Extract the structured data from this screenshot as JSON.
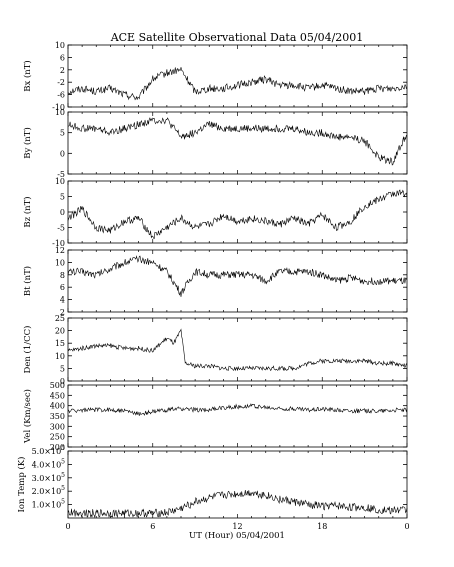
{
  "chart_data": {
    "type": "line",
    "title": "ACE Satellite Observational Data   05/04/2001",
    "xlabel": "UT (Hour)   05/04/2001",
    "x_ticks": [
      "0",
      "6",
      "12",
      "18",
      "0"
    ],
    "x_range_hours": [
      0,
      24
    ],
    "line_color": "#000000",
    "panels": [
      {
        "ylabel": "Bx (nT)",
        "ylim": [
          -10,
          10
        ],
        "ticks": [
          10,
          6,
          2,
          -2,
          -6,
          -10
        ],
        "tick_labels": [
          "10",
          "6",
          "2",
          "-2",
          "-6",
          "-10"
        ],
        "series": {
          "x": [
            0,
            1,
            2,
            3,
            4,
            5,
            6,
            7,
            8,
            9,
            10,
            11,
            12,
            13,
            14,
            15,
            16,
            17,
            18,
            19,
            20,
            21,
            22,
            23,
            24
          ],
          "values": [
            -5,
            -4,
            -5,
            -4,
            -6,
            -7,
            -1,
            1,
            2,
            -5,
            -4,
            -4,
            -3,
            -2,
            -1,
            -3,
            -3,
            -4,
            -3,
            -4,
            -5,
            -5,
            -4,
            -4,
            -3
          ]
        }
      },
      {
        "ylabel": "By (nT)",
        "ylim": [
          -5,
          10
        ],
        "ticks": [
          10,
          5,
          0,
          -5
        ],
        "tick_labels": [
          "10",
          "5",
          "0",
          "-5"
        ],
        "series": {
          "x": [
            0,
            1,
            2,
            3,
            4,
            5,
            6,
            7,
            8,
            9,
            10,
            11,
            12,
            13,
            14,
            15,
            16,
            17,
            18,
            19,
            20,
            21,
            22,
            23,
            24
          ],
          "values": [
            7,
            6,
            6,
            5,
            6,
            7,
            8,
            8,
            4,
            5,
            7,
            6,
            6,
            6,
            6,
            6,
            6,
            5,
            5,
            4,
            4,
            3,
            -1,
            -2,
            5
          ]
        }
      },
      {
        "ylabel": "Bz (nT)",
        "ylim": [
          -10,
          10
        ],
        "ticks": [
          10,
          5,
          0,
          -5,
          -10
        ],
        "tick_labels": [
          "10",
          "5",
          "0",
          "-5",
          "-10"
        ],
        "series": {
          "x": [
            0,
            1,
            2,
            3,
            4,
            5,
            6,
            7,
            8,
            9,
            10,
            11,
            12,
            13,
            14,
            15,
            16,
            17,
            18,
            19,
            20,
            21,
            22,
            23,
            24
          ],
          "values": [
            -2,
            1,
            -5,
            -6,
            -3,
            -2,
            -8,
            -5,
            -2,
            -5,
            -4,
            -1,
            -3,
            -2,
            -3,
            -4,
            -2,
            -4,
            -1,
            -5,
            -3,
            2,
            4,
            6,
            6
          ]
        }
      },
      {
        "ylabel": "Bt (nT)",
        "ylim": [
          2,
          12
        ],
        "ticks": [
          12,
          10,
          8,
          6,
          4,
          2
        ],
        "tick_labels": [
          "12",
          "10",
          "8",
          "6",
          "4",
          "2"
        ],
        "series": {
          "x": [
            0,
            1,
            2,
            3,
            4,
            5,
            6,
            7,
            8,
            9,
            10,
            11,
            12,
            13,
            14,
            15,
            16,
            17,
            18,
            19,
            20,
            21,
            22,
            23,
            24
          ],
          "values": [
            8.5,
            8.5,
            8,
            9,
            10,
            10.5,
            10,
            8.5,
            5,
            8.5,
            8,
            8,
            8,
            8,
            7,
            8.5,
            8.5,
            8.5,
            8,
            7,
            7.5,
            7,
            7,
            7,
            7
          ]
        }
      },
      {
        "ylabel": "Den (1/CC)",
        "ylim": [
          0,
          25
        ],
        "ticks": [
          25,
          20,
          15,
          10,
          5,
          0
        ],
        "tick_labels": [
          "25",
          "20",
          "15",
          "10",
          "5",
          "0"
        ],
        "series": {
          "x": [
            0,
            1,
            2,
            3,
            4,
            5,
            6,
            7,
            7.5,
            8,
            8.3,
            9,
            10,
            11,
            12,
            13,
            14,
            15,
            16,
            17,
            18,
            19,
            20,
            21,
            22,
            23,
            24
          ],
          "values": [
            12,
            13,
            14,
            14,
            13,
            13,
            12,
            17,
            15,
            20,
            7,
            6,
            6,
            5,
            5,
            5,
            5,
            5,
            5,
            7,
            8,
            8,
            8,
            8,
            7,
            7,
            6
          ]
        }
      },
      {
        "ylabel": "Vel (Km/sec)",
        "ylim": [
          200,
          500
        ],
        "ticks": [
          500,
          450,
          400,
          350,
          300,
          250,
          200
        ],
        "tick_labels": [
          "500",
          "450",
          "400",
          "350",
          "300",
          "250",
          "200"
        ],
        "series": {
          "x": [
            0,
            1,
            2,
            3,
            4,
            5,
            6,
            7,
            8,
            9,
            10,
            11,
            12,
            13,
            14,
            15,
            16,
            17,
            18,
            19,
            20,
            21,
            22,
            23,
            24
          ],
          "values": [
            375,
            378,
            380,
            380,
            375,
            360,
            370,
            380,
            385,
            380,
            380,
            390,
            395,
            400,
            390,
            385,
            385,
            380,
            385,
            380,
            375,
            375,
            375,
            378,
            380
          ]
        }
      },
      {
        "ylabel": "Ion Temp (K)",
        "ylim": [
          0,
          500000
        ],
        "ticks": [
          500000,
          400000,
          300000,
          200000,
          100000
        ],
        "tick_labels": [
          {
            "mantissa": "5.0",
            "exp": "5"
          },
          {
            "mantissa": "4.0",
            "exp": "5"
          },
          {
            "mantissa": "3.0",
            "exp": "5"
          },
          {
            "mantissa": "2.0",
            "exp": "5"
          },
          {
            "mantissa": "1.0",
            "exp": "5"
          }
        ],
        "tick_prefix": "×10",
        "series": {
          "x": [
            0,
            1,
            2,
            3,
            4,
            5,
            6,
            7,
            8,
            9,
            10,
            11,
            12,
            13,
            14,
            15,
            16,
            17,
            18,
            19,
            20,
            21,
            22,
            23,
            24
          ],
          "values": [
            40000,
            40000,
            35000,
            35000,
            35000,
            35000,
            35000,
            40000,
            70000,
            120000,
            150000,
            170000,
            180000,
            190000,
            170000,
            140000,
            120000,
            100000,
            90000,
            90000,
            80000,
            80000,
            60000,
            60000,
            60000
          ]
        }
      }
    ]
  }
}
